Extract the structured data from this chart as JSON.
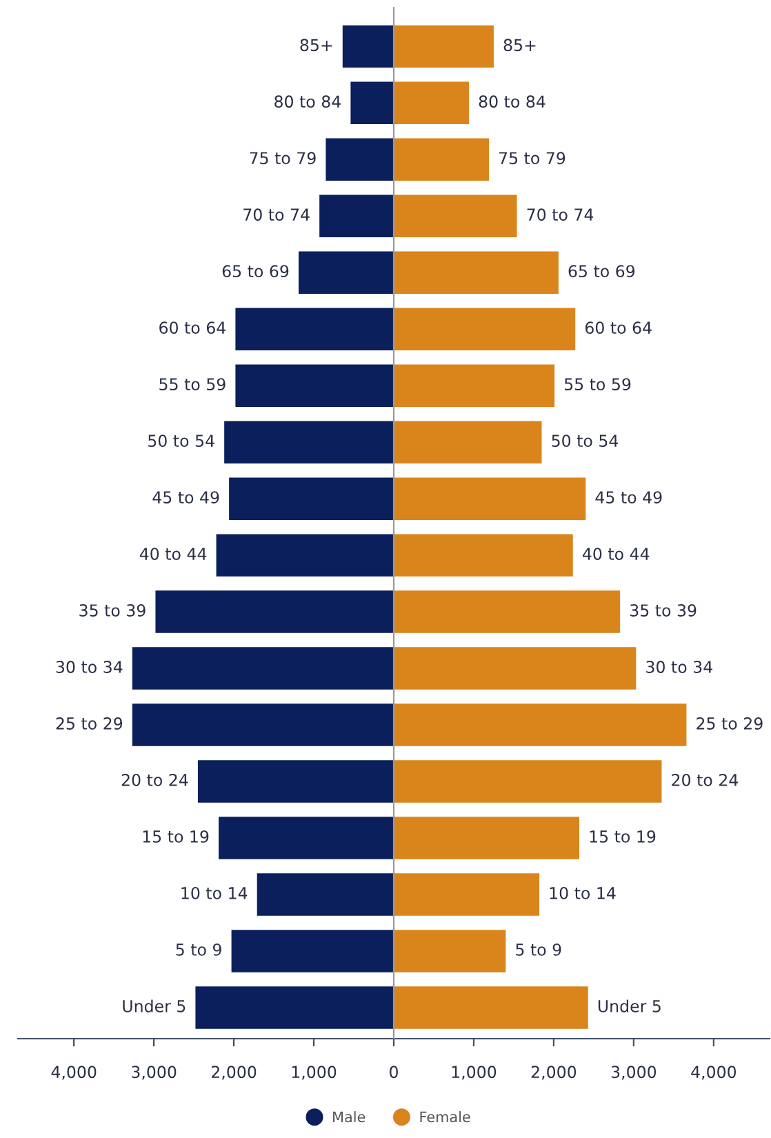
{
  "chart_data": {
    "type": "bar",
    "orientation": "horizontal",
    "categories": [
      "85+",
      "80 to 84",
      "75 to 79",
      "70 to 74",
      "65 to 69",
      "60 to 64",
      "55 to 59",
      "50 to 54",
      "45 to 49",
      "40 to 44",
      "35 to 39",
      "30 to 34",
      "25 to 29",
      "20 to 24",
      "15 to 19",
      "10 to 14",
      "5 to 9",
      "Under 5"
    ],
    "series": [
      {
        "name": "Male",
        "color": "#0b1f5c",
        "values": [
          -640,
          -540,
          -850,
          -930,
          -1190,
          -1980,
          -1980,
          -2120,
          -2060,
          -2220,
          -2980,
          -3270,
          -3270,
          -2450,
          -2190,
          -1710,
          -2030,
          -2480
        ]
      },
      {
        "name": "Female",
        "color": "#d9851c",
        "values": [
          1250,
          940,
          1190,
          1540,
          2060,
          2270,
          2010,
          1850,
          2400,
          2240,
          2830,
          3030,
          3660,
          3350,
          2320,
          1820,
          1400,
          2430
        ]
      }
    ],
    "xlim": [
      -4700,
      4700
    ],
    "xticks": [
      {
        "value": -4000,
        "label": "4,000"
      },
      {
        "value": -3000,
        "label": "3,000"
      },
      {
        "value": -2000,
        "label": "2,000"
      },
      {
        "value": -1000,
        "label": "1,000"
      },
      0,
      {
        "value": 1000,
        "label": "1,000"
      },
      {
        "value": 2000,
        "label": "2,000"
      },
      {
        "value": 3000,
        "label": "3,000"
      },
      {
        "value": 4000,
        "label": "4,000"
      }
    ],
    "ref_lines": [
      {
        "axis": "x",
        "value": 0,
        "color": "#999999"
      }
    ],
    "stacked": true,
    "grid": false,
    "legend": "bottom"
  }
}
